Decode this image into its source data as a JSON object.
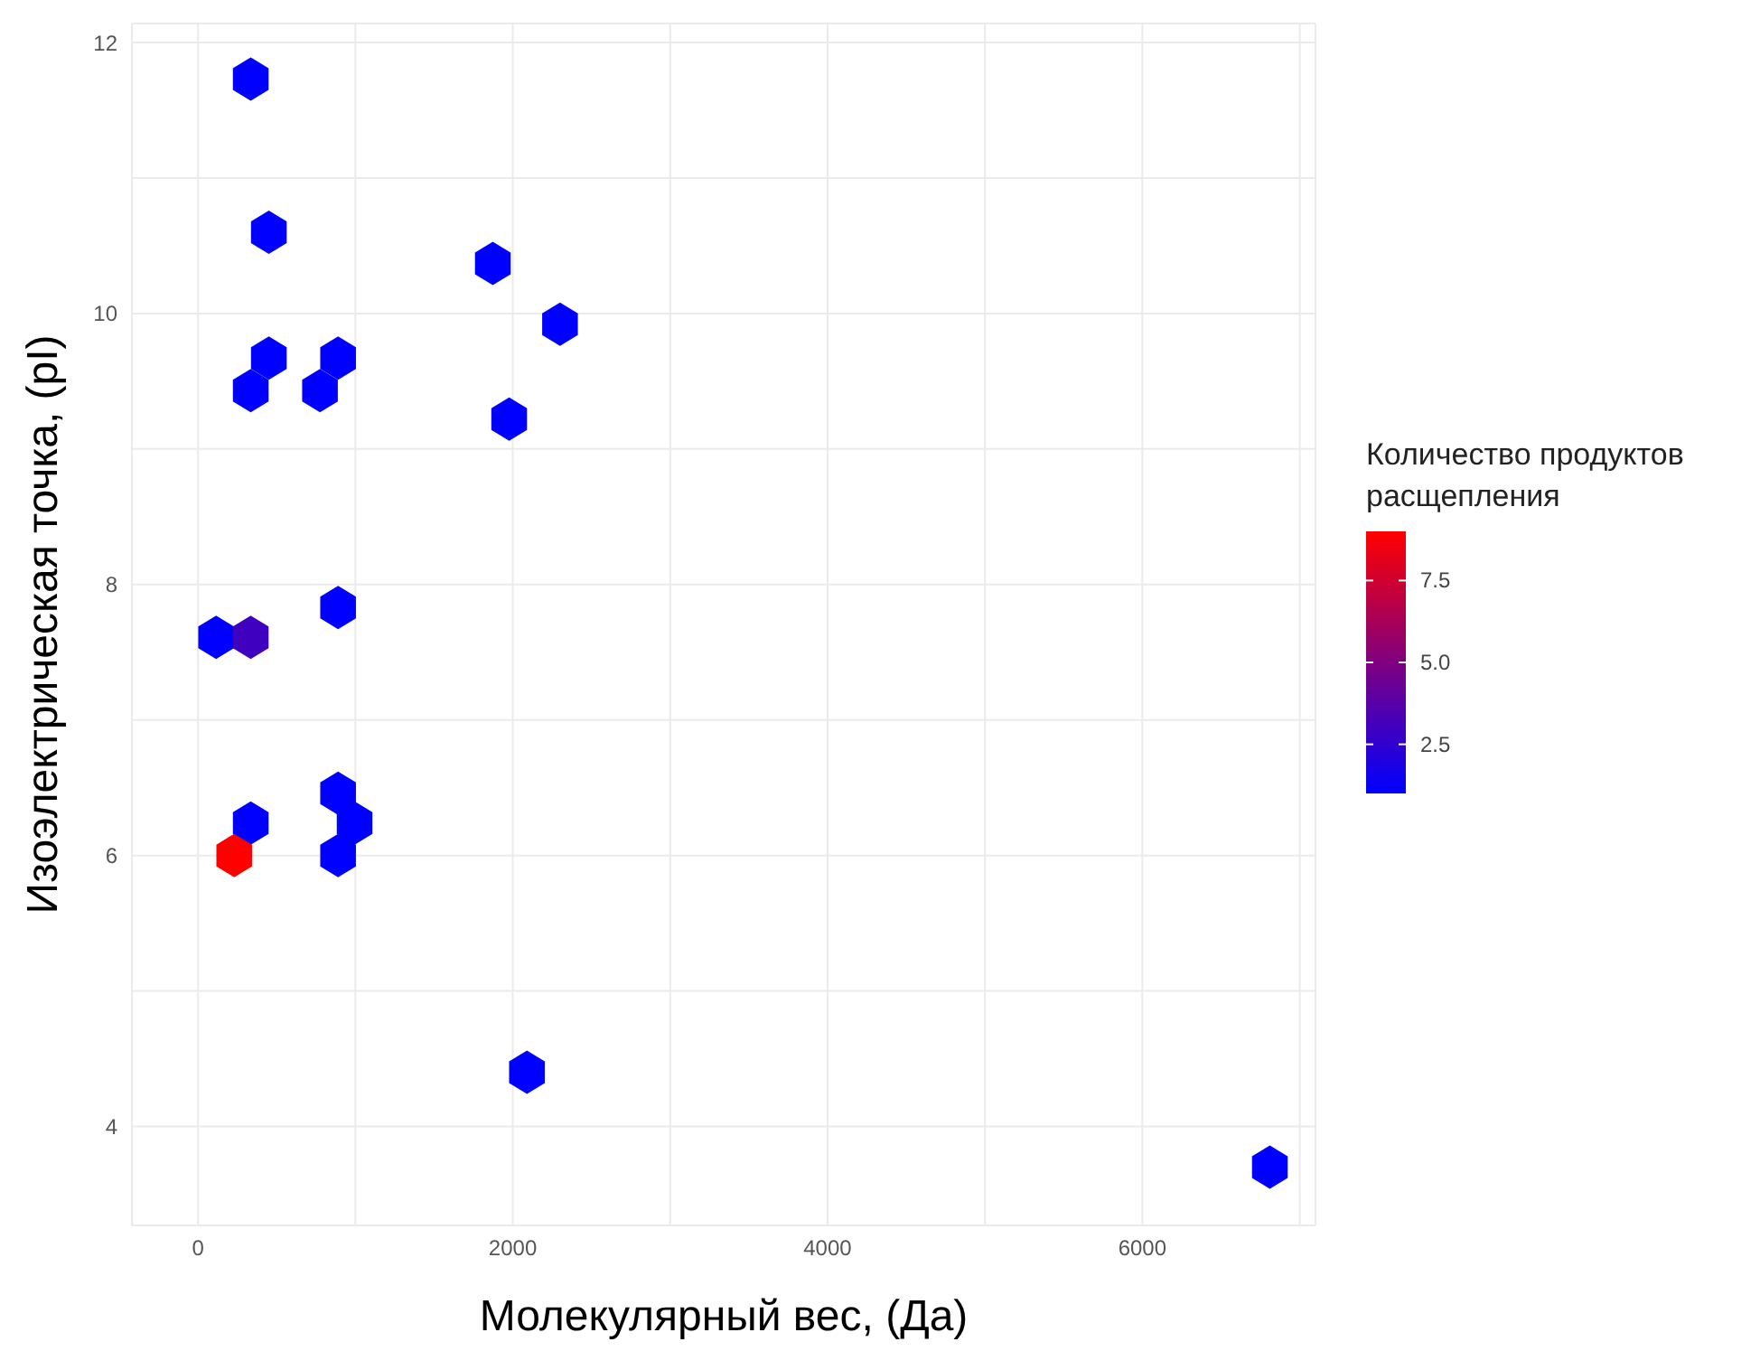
{
  "chart_data": {
    "type": "scatter",
    "xlabel": "Молекулярный вес, (Да)",
    "ylabel": "Изоэлектрическая точка, (pI)",
    "clabel": "Количество продуктов расщепления",
    "x": [
      335,
      450,
      1873,
      2300,
      450,
      890,
      335,
      775,
      1977,
      890,
      115,
      335,
      890,
      335,
      995,
      230,
      890,
      2090,
      6810
    ],
    "values": [
      11.73,
      10.6,
      10.37,
      9.92,
      9.67,
      9.67,
      9.43,
      9.43,
      9.22,
      7.83,
      7.61,
      7.61,
      6.46,
      6.24,
      6.24,
      6.0,
      6.0,
      4.4,
      3.7
    ],
    "cvalues": [
      1,
      1,
      1,
      1,
      1,
      1,
      1,
      1,
      1,
      1,
      1,
      3,
      1,
      1,
      1,
      9,
      1,
      1,
      1
    ],
    "clim": [
      1,
      9
    ],
    "cticks": [
      2.5,
      {
        "value": 5,
        "label": "5.0"
      },
      7.5
    ],
    "xlim": [
      -420,
      7100
    ],
    "ylim": [
      3.27,
      12.14
    ],
    "xticks": [
      0,
      {
        "value": 1000,
        "label": null
      },
      2000,
      {
        "value": 3000,
        "label": null
      },
      4000,
      {
        "value": 5000,
        "label": null
      },
      6000,
      {
        "value": 7000,
        "label": null
      }
    ],
    "yticks": [
      4,
      {
        "value": 5,
        "label": null
      },
      6,
      {
        "value": 7,
        "label": null
      },
      8,
      {
        "value": 9,
        "label": null
      },
      10,
      {
        "value": 11,
        "label": null
      },
      12
    ],
    "grid": true
  }
}
